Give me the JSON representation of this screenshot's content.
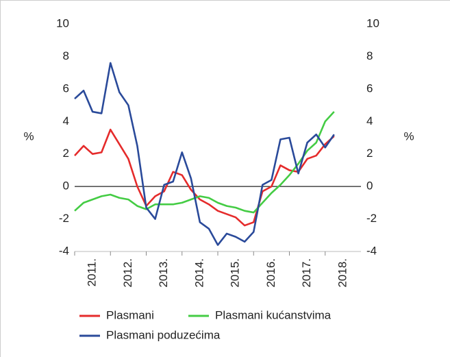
{
  "chart_data": {
    "type": "line",
    "y_label": "%",
    "y2_label": "%",
    "x": [
      2011,
      2011.25,
      2011.5,
      2011.75,
      2012,
      2012.25,
      2012.5,
      2012.75,
      2013,
      2013.25,
      2013.5,
      2013.75,
      2014,
      2014.25,
      2014.5,
      2014.75,
      2015,
      2015.25,
      2015.5,
      2015.75,
      2016,
      2016.25,
      2016.5,
      2016.75,
      2017,
      2017.25,
      2017.5,
      2017.75,
      2018,
      2018.25
    ],
    "series": [
      {
        "name": "Plasmani",
        "color": "#e52b2b",
        "values": [
          1.9,
          2.5,
          2.0,
          2.1,
          3.5,
          2.6,
          1.7,
          0.0,
          -1.2,
          -0.6,
          -0.3,
          0.9,
          0.7,
          -0.2,
          -0.8,
          -1.1,
          -1.5,
          -1.7,
          -1.9,
          -2.4,
          -2.2,
          -0.3,
          0.0,
          1.3,
          1.0,
          0.9,
          1.7,
          1.9,
          2.6,
          3.1
        ]
      },
      {
        "name": "Plasmani kućanstvima",
        "color": "#44cc44",
        "values": [
          -1.5,
          -1.0,
          -0.8,
          -0.6,
          -0.5,
          -0.7,
          -0.8,
          -1.2,
          -1.4,
          -1.1,
          -1.1,
          -1.1,
          -1.0,
          -0.8,
          -0.6,
          -0.7,
          -1.0,
          -1.2,
          -1.3,
          -1.5,
          -1.6,
          -1.0,
          -0.4,
          0.1,
          0.7,
          1.4,
          2.2,
          2.7,
          4.0,
          4.6
        ]
      },
      {
        "name": "Plasmani poduzećima",
        "color": "#2a4a9a",
        "values": [
          5.4,
          5.9,
          4.6,
          4.5,
          7.6,
          5.8,
          5.0,
          2.5,
          -1.3,
          -2.0,
          0.1,
          0.3,
          2.1,
          0.5,
          -2.2,
          -2.6,
          -3.6,
          -2.9,
          -3.1,
          -3.4,
          -2.8,
          0.1,
          0.4,
          2.9,
          3.0,
          0.8,
          2.7,
          3.2,
          2.4,
          3.2
        ]
      }
    ],
    "xlim": [
      2011,
      2019
    ],
    "xticks": [
      {
        "value": 2011,
        "label": "2011."
      },
      {
        "value": 2012,
        "label": "2012."
      },
      {
        "value": 2013,
        "label": "2013."
      },
      {
        "value": 2014,
        "label": "2014."
      },
      {
        "value": 2015,
        "label": "2015."
      },
      {
        "value": 2016,
        "label": "2016."
      },
      {
        "value": 2017,
        "label": "2017."
      },
      {
        "value": 2018,
        "label": "2018."
      }
    ],
    "ylim": [
      -4,
      10
    ],
    "yticks": [
      -4,
      -2,
      0,
      2,
      4,
      6,
      8,
      10
    ],
    "y2lim": [
      -4,
      10
    ],
    "y2ticks": [
      -4,
      -2,
      0,
      2,
      4,
      6,
      8,
      10
    ],
    "zero_line": true
  }
}
